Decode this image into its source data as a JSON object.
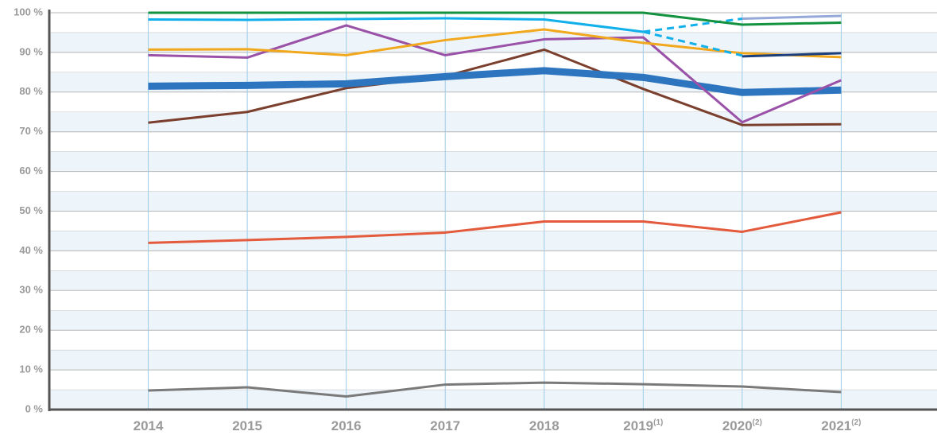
{
  "chart_data": {
    "type": "line",
    "categories": [
      "2014",
      "2015",
      "2016",
      "2017",
      "2018",
      "2019",
      "2020",
      "2021"
    ],
    "category_notes": [
      null,
      null,
      null,
      null,
      null,
      "(1)",
      "(2)",
      "(2)"
    ],
    "ylim": [
      0,
      100
    ],
    "yticks": [
      {
        "value": 0,
        "label": "0 %"
      },
      {
        "value": 10,
        "label": "10 %"
      },
      {
        "value": 20,
        "label": "20 %"
      },
      {
        "value": 30,
        "label": "30 %"
      },
      {
        "value": 40,
        "label": "40 %"
      },
      {
        "value": 50,
        "label": "50 %"
      },
      {
        "value": 60,
        "label": "60 %"
      },
      {
        "value": 70,
        "label": "70 %"
      },
      {
        "value": 80,
        "label": "80 %"
      },
      {
        "value": 90,
        "label": "90 %"
      },
      {
        "value": 100,
        "label": "100 %"
      }
    ],
    "grid": true,
    "series": [
      {
        "color": "#7a7a7a",
        "width": 3,
        "values": [
          4.8,
          5.6,
          3.3,
          6.3,
          6.8,
          6.4,
          5.8,
          4.4
        ]
      },
      {
        "color": "#e35b3c",
        "width": 3,
        "values": [
          42,
          42.7,
          43.5,
          44.6,
          47.4,
          47.4,
          44.8,
          49.7
        ]
      },
      {
        "color": "#7b3f2e",
        "width": 3,
        "values": [
          72.3,
          75,
          81,
          84,
          90.7,
          80.8,
          71.7,
          71.9
        ]
      },
      {
        "color": "#2e75c0",
        "width": 9,
        "values": [
          81.5,
          81.7,
          82.1,
          83.9,
          85.4,
          83.7,
          79.9,
          80.5
        ]
      },
      {
        "color": "#9a52a8",
        "width": 3,
        "values": [
          89.3,
          88.7,
          96.8,
          89.3,
          93.3,
          93.8,
          72.4,
          83
        ]
      },
      {
        "color": "#f2a81d",
        "width": 3,
        "values": [
          90.7,
          90.8,
          89.3,
          93.1,
          95.8,
          92.4,
          89.8,
          88.8
        ]
      },
      {
        "color": "#12b0ea",
        "width": 3,
        "values": [
          98.3,
          98.2,
          98.4,
          98.6,
          98.3,
          95.2,
          null,
          null
        ]
      },
      {
        "color": "#12b0ea",
        "width": 3,
        "dashed": true,
        "values": [
          null,
          null,
          null,
          null,
          null,
          95.2,
          98.5,
          null
        ]
      },
      {
        "color": "#12b0ea",
        "width": 3,
        "dashed": true,
        "values": [
          null,
          null,
          null,
          null,
          null,
          95.2,
          89.2,
          null
        ]
      },
      {
        "color": "#95a8d8",
        "width": 3,
        "values": [
          null,
          null,
          null,
          null,
          null,
          null,
          98.5,
          99.2
        ]
      },
      {
        "color": "#1b3f7c",
        "width": 3,
        "values": [
          null,
          null,
          null,
          null,
          null,
          null,
          89,
          89.8
        ]
      },
      {
        "color": "#13933f",
        "width": 3,
        "values": [
          100,
          100,
          100,
          100,
          100,
          100,
          97,
          97.5
        ]
      }
    ]
  }
}
